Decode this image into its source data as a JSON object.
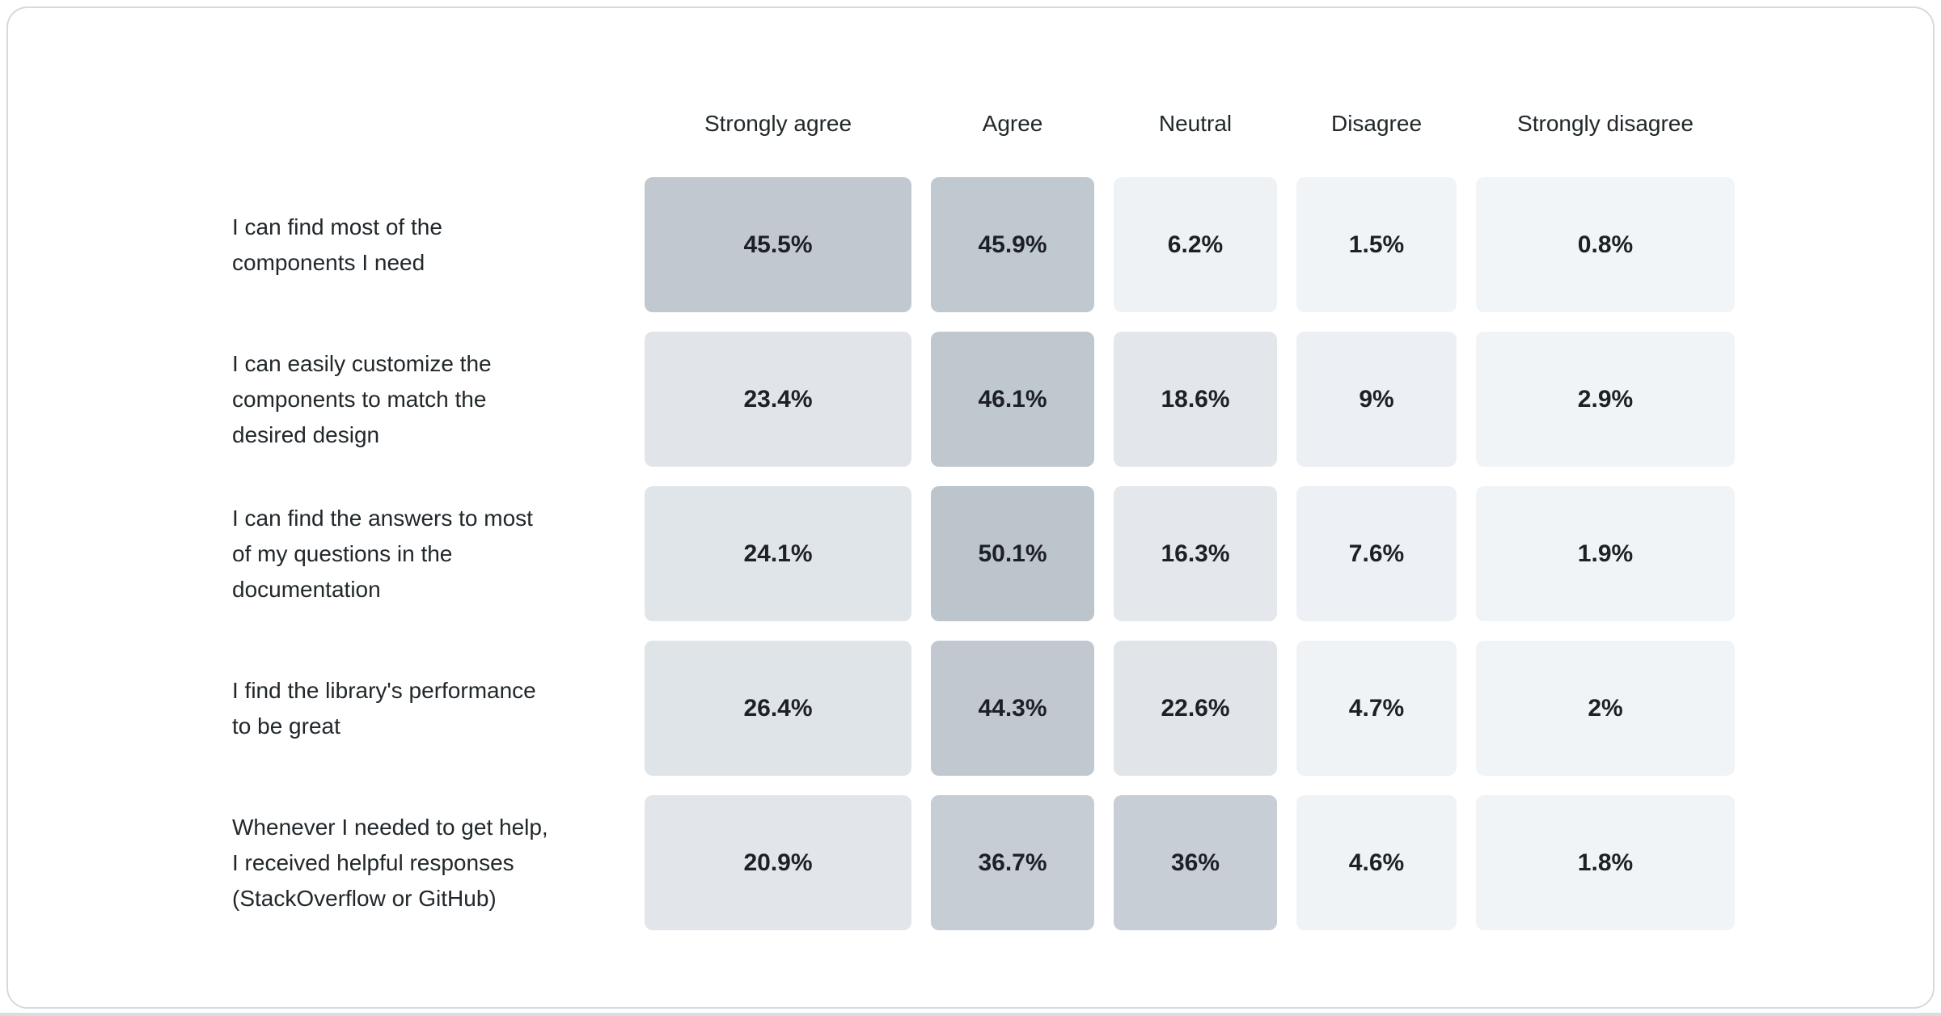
{
  "page": {
    "card_background": "#ffffff",
    "card_border_color": "#d5dade",
    "bottom_strip_color": "#d8dde2",
    "header_text_color": "#21272a",
    "value_text_color": "#1d2126"
  },
  "chart_data": {
    "type": "heatmap",
    "title": "",
    "columns": [
      "Strongly agree",
      "Agree",
      "Neutral",
      "Disagree",
      "Strongly disagree"
    ],
    "rows": [
      {
        "label": "I can find most of the\ncomponents I need",
        "values": [
          45.5,
          45.9,
          6.2,
          1.5,
          0.8
        ],
        "display": [
          "45.5%",
          "45.9%",
          "6.2%",
          "1.5%",
          "0.8%"
        ],
        "colors": [
          "#c1c8d0",
          "#c0c8d0",
          "#eef2f5",
          "#f1f4f7",
          "#f1f5f8"
        ]
      },
      {
        "label": "I can easily customize the\ncomponents to match the\ndesired design",
        "values": [
          23.4,
          46.1,
          18.6,
          9,
          2.9
        ],
        "display": [
          "23.4%",
          "46.1%",
          "18.6%",
          "9%",
          "2.9%"
        ],
        "colors": [
          "#e1e5ea",
          "#bfc7cf",
          "#e3e7eb",
          "#ecf0f4",
          "#f0f4f7"
        ]
      },
      {
        "label": "I can find the answers to most\nof my questions in the\ndocumentation",
        "values": [
          24.1,
          50.1,
          16.3,
          7.6,
          1.9
        ],
        "display": [
          "24.1%",
          "50.1%",
          "16.3%",
          "7.6%",
          "1.9%"
        ],
        "colors": [
          "#e0e5e9",
          "#bcc4cc",
          "#e4e8ec",
          "#edf1f5",
          "#f0f4f7"
        ]
      },
      {
        "label": "I find the library's performance\nto be great",
        "values": [
          26.4,
          44.3,
          22.6,
          4.7,
          2
        ],
        "display": [
          "26.4%",
          "44.3%",
          "22.6%",
          "4.7%",
          "2%"
        ],
        "colors": [
          "#dfe4e8",
          "#c1c8d0",
          "#e1e5ea",
          "#eff3f6",
          "#f0f4f7"
        ]
      },
      {
        "label": "Whenever I needed to get help,\nI received helpful responses\n(StackOverflow or GitHub)",
        "values": [
          20.9,
          36.7,
          36,
          4.6,
          1.8
        ],
        "display": [
          "20.9%",
          "36.7%",
          "36%",
          "4.6%",
          "1.8%"
        ],
        "colors": [
          "#e2e6ea",
          "#c6cdd4",
          "#c7ced5",
          "#eff3f6",
          "#f1f4f7"
        ]
      }
    ],
    "scale": {
      "min_color": "#f1f5f8",
      "max_color": "#bcc4cc",
      "domain": [
        0,
        50.1
      ]
    },
    "grid": false,
    "legend": "none"
  }
}
